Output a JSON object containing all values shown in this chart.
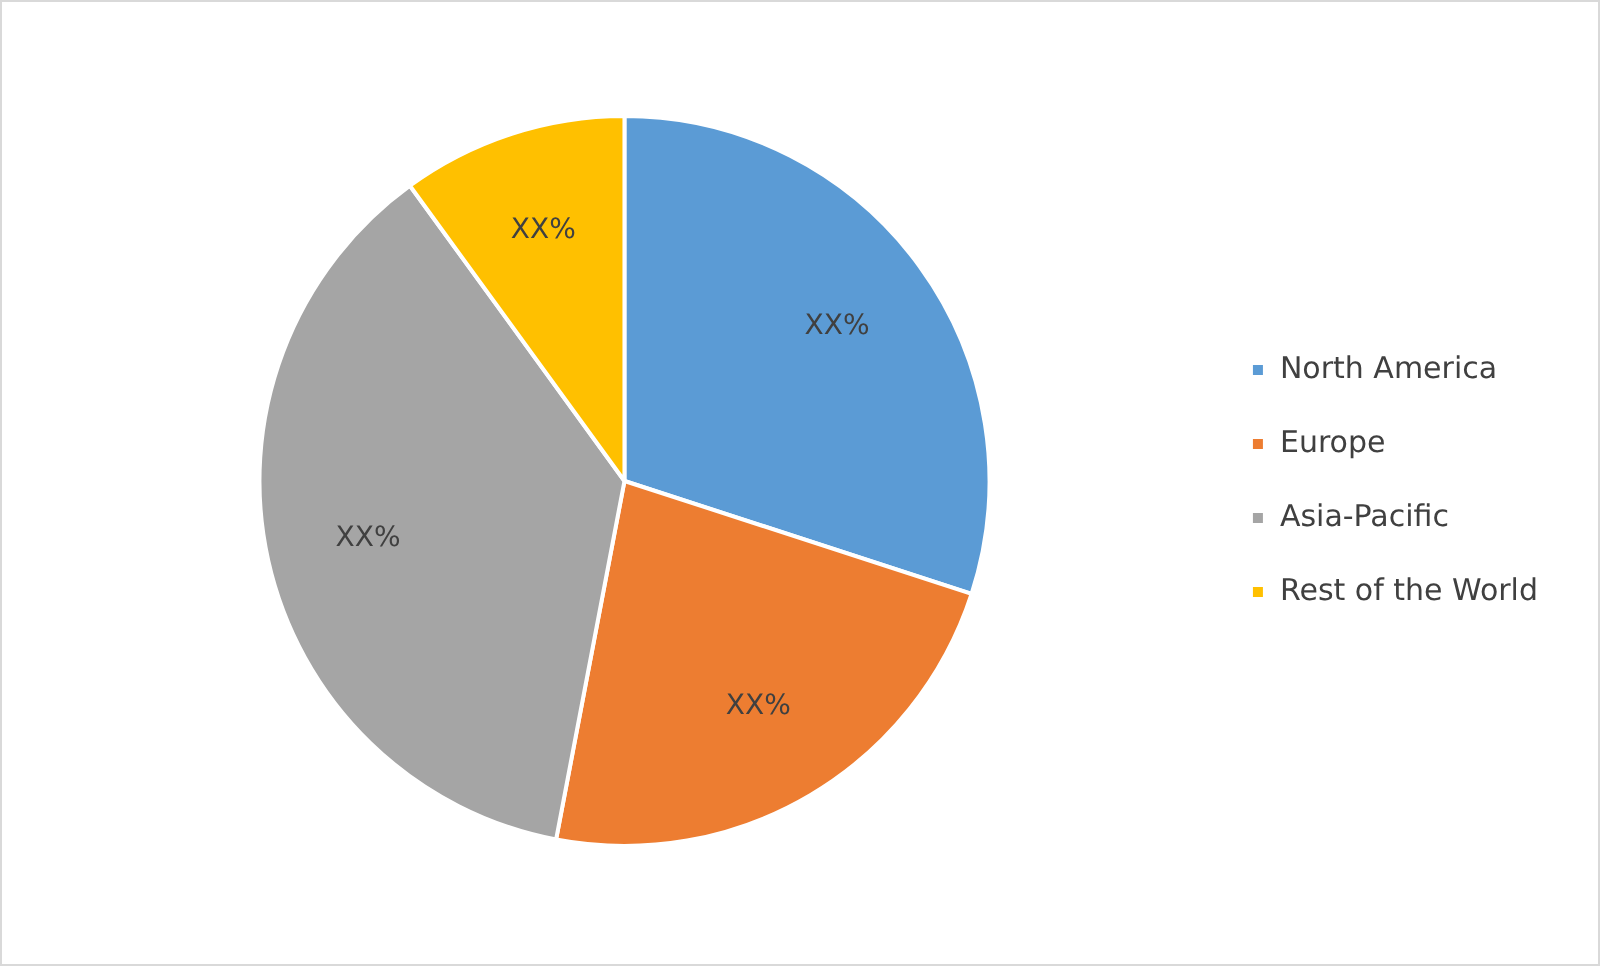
{
  "chart_data": {
    "type": "pie",
    "categories": [
      "North America",
      "Europe",
      "Asia-Pacific",
      "Rest of the World"
    ],
    "values": [
      30,
      23,
      37,
      10
    ],
    "colors": [
      "#5b9bd5",
      "#ed7d31",
      "#a5a5a5",
      "#ffc000"
    ],
    "value_labels": [
      "XX%",
      "XX%",
      "XX%",
      "XX%"
    ],
    "legend": "right"
  }
}
